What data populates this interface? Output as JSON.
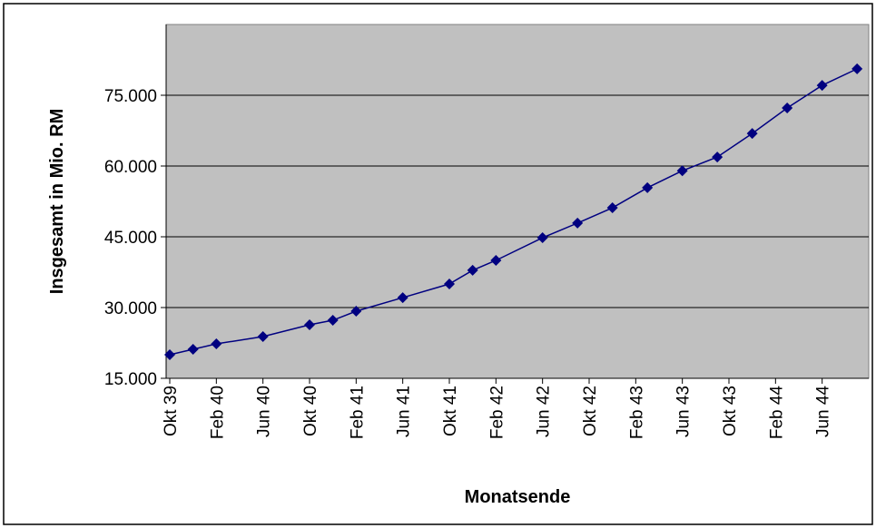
{
  "chart_data": {
    "type": "line",
    "xlabel": "Monatsende",
    "ylabel": "Insgesamt in Mio. RM",
    "x": [
      "Okt 39",
      "Dez 39",
      "Feb 40",
      "Jun 40",
      "Okt 40",
      "Dez 40",
      "Feb 41",
      "Jun 41",
      "Okt 41",
      "Dez 41",
      "Feb 42",
      "Jun 42",
      "Sep 42",
      "Dez 42",
      "Mär 43",
      "Jun 43",
      "Sep 43",
      "Dez 43",
      "Mär 44",
      "Jun 44",
      "Sep 44"
    ],
    "series": [
      {
        "name": "Insgesamt",
        "color": "#000080",
        "values": [
          20000,
          21150,
          22300,
          23850,
          26350,
          27300,
          29230,
          32100,
          35000,
          37900,
          40000,
          44800,
          47900,
          51150,
          55400,
          59000,
          61900,
          66900,
          72300,
          77100,
          80600
        ]
      }
    ],
    "xlim": [
      "Okt 39",
      "Okt 44"
    ],
    "xticks": [
      "Okt 39",
      "Feb 40",
      "Jun 40",
      "Okt 40",
      "Feb 41",
      "Jun 41",
      "Okt 41",
      "Feb 42",
      "Jun 42",
      "Okt 42",
      "Feb 43",
      "Jun 43",
      "Okt 43",
      "Feb 44",
      "Jun 44"
    ],
    "ylim": [
      15000,
      90000
    ],
    "yticks": [
      {
        "value": 15000,
        "label": "15.000"
      },
      {
        "value": 30000,
        "label": "30.000"
      },
      {
        "value": 45000,
        "label": "45.000"
      },
      {
        "value": 60000,
        "label": "60.000"
      },
      {
        "value": 75000,
        "label": "75.000"
      }
    ],
    "grid": true,
    "plot_background": "#c0c0c0"
  }
}
